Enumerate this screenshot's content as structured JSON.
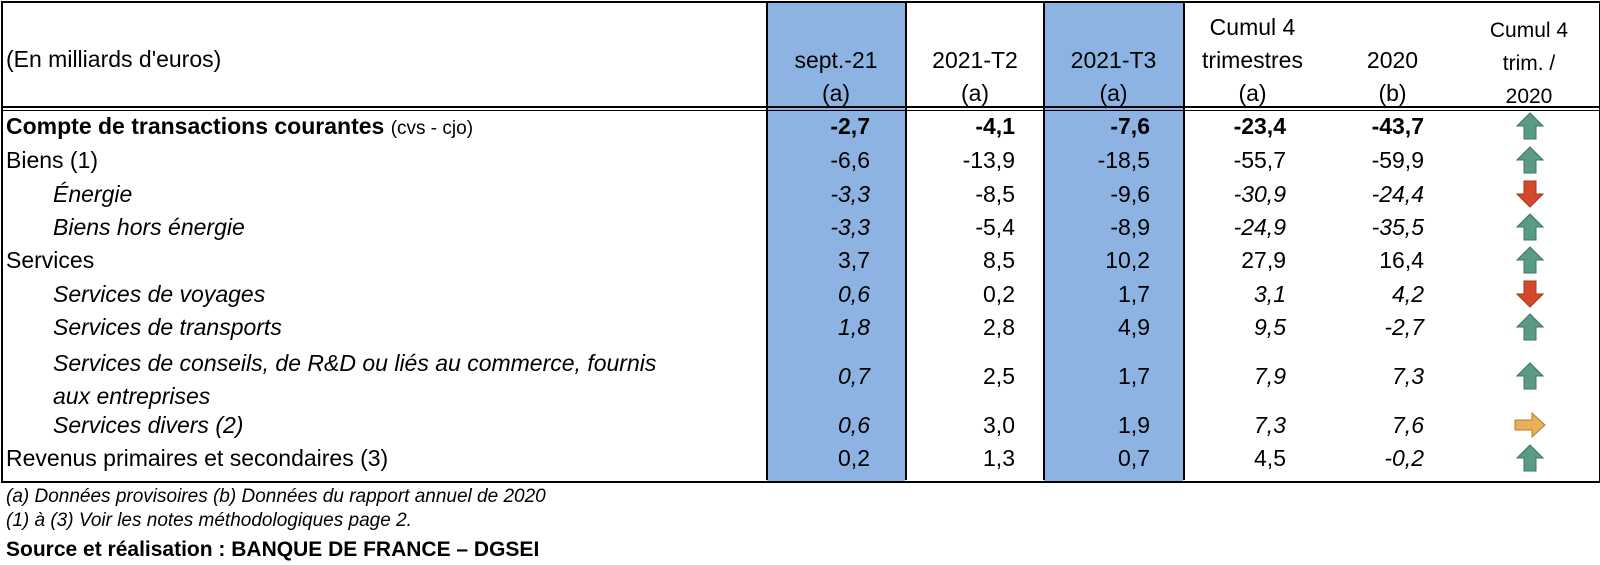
{
  "header": {
    "unit": "(En milliards d'euros)",
    "columns": [
      {
        "l1": "",
        "l2": "sept.-21",
        "l3": "(a)"
      },
      {
        "l1": "",
        "l2": "2021-T2",
        "l3": "(a)"
      },
      {
        "l1": "",
        "l2": "2021-T3",
        "l3": "(a)"
      },
      {
        "l1": "Cumul 4",
        "l2": "trimestres",
        "l3": "(a)"
      },
      {
        "l1": "",
        "l2": "2020",
        "l3": "(b)"
      },
      {
        "l1": "Cumul 4",
        "l2": "trim. /",
        "l3": "2020"
      }
    ]
  },
  "rows": [
    {
      "label": "Compte de transactions courantes",
      "suffix": "(cvs - cjo)",
      "values": [
        "-2,7",
        "-4,1",
        "-7,6",
        "-23,4",
        "-43,7"
      ],
      "trend": "up"
    },
    {
      "label": "Biens (1)",
      "values": [
        "-6,6",
        "-13,9",
        "-18,5",
        "-55,7",
        "-59,9"
      ],
      "trend": "up"
    },
    {
      "label": "Énergie",
      "values": [
        "-3,3",
        "-8,5",
        "-9,6",
        "-30,9",
        "-24,4"
      ],
      "trend": "down"
    },
    {
      "label": "Biens hors énergie",
      "values": [
        "-3,3",
        "-5,4",
        "-8,9",
        "-24,9",
        "-35,5"
      ],
      "trend": "up"
    },
    {
      "label": "Services",
      "values": [
        "3,7",
        "8,5",
        "10,2",
        "27,9",
        "16,4"
      ],
      "trend": "up"
    },
    {
      "label": "Services de voyages",
      "values": [
        "0,6",
        "0,2",
        "1,7",
        "3,1",
        "4,2"
      ],
      "trend": "down"
    },
    {
      "label": "Services de transports",
      "values": [
        "1,8",
        "2,8",
        "4,9",
        "9,5",
        "-2,7"
      ],
      "trend": "up"
    },
    {
      "label": "Services de conseils, de R&D ou liés au commerce, fournis",
      "label2": "aux entreprises",
      "values": [
        "0,7",
        "2,5",
        "1,7",
        "7,9",
        "7,3"
      ],
      "trend": "up"
    },
    {
      "label": "Services divers (2)",
      "values": [
        "0,6",
        "3,0",
        "1,9",
        "7,3",
        "7,6"
      ],
      "trend": "right"
    },
    {
      "label": "Revenus primaires et secondaires (3)",
      "values": [
        "0,2",
        "1,3",
        "0,7",
        "4,5",
        "-0,2"
      ],
      "trend": "up"
    }
  ],
  "footnotes": {
    "line1": "(a)     Données provisoires (b) Données du rapport annuel de 2020",
    "line2": "(1) à (3) Voir les notes méthodologiques page 2.",
    "source": "Source et réalisation : BANQUE DE FRANCE – DGSEI"
  },
  "colors": {
    "highlight": "#8db3e2",
    "arrow_up": "#5a9a86",
    "arrow_down": "#d4492a",
    "arrow_right": "#e8b05a"
  }
}
